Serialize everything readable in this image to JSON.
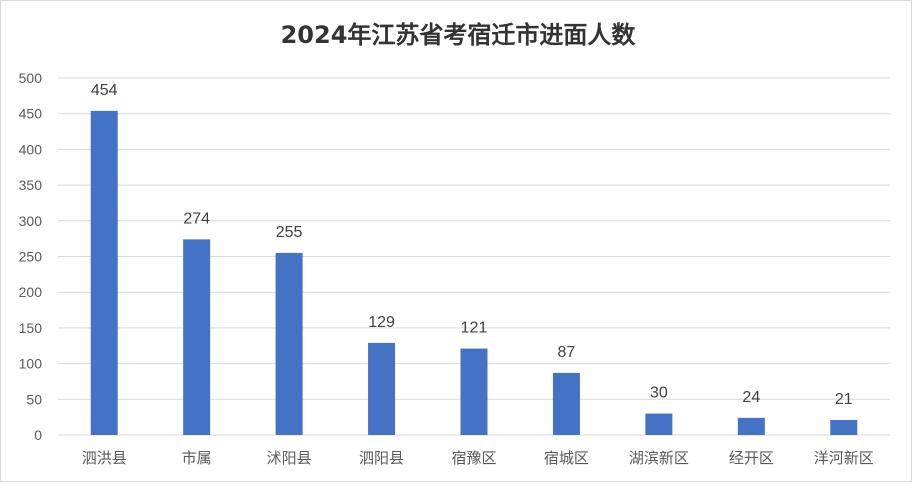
{
  "chart_data": {
    "type": "bar",
    "title": "2024年江苏省考宿迁市进面人数",
    "xlabel": "",
    "ylabel": "",
    "categories": [
      "泗洪县",
      "市属",
      "沭阳县",
      "泗阳县",
      "宿豫区",
      "宿城区",
      "湖滨新区",
      "经开区",
      "洋河新区"
    ],
    "values": [
      454,
      274,
      255,
      129,
      121,
      87,
      30,
      24,
      21
    ],
    "ylim": [
      0,
      500
    ],
    "yticks": [
      0,
      50,
      100,
      150,
      200,
      250,
      300,
      350,
      400,
      450,
      500
    ],
    "grid": true,
    "legend": "none",
    "bar_color": "#4472c4",
    "grid_color": "#d9d9d9"
  }
}
